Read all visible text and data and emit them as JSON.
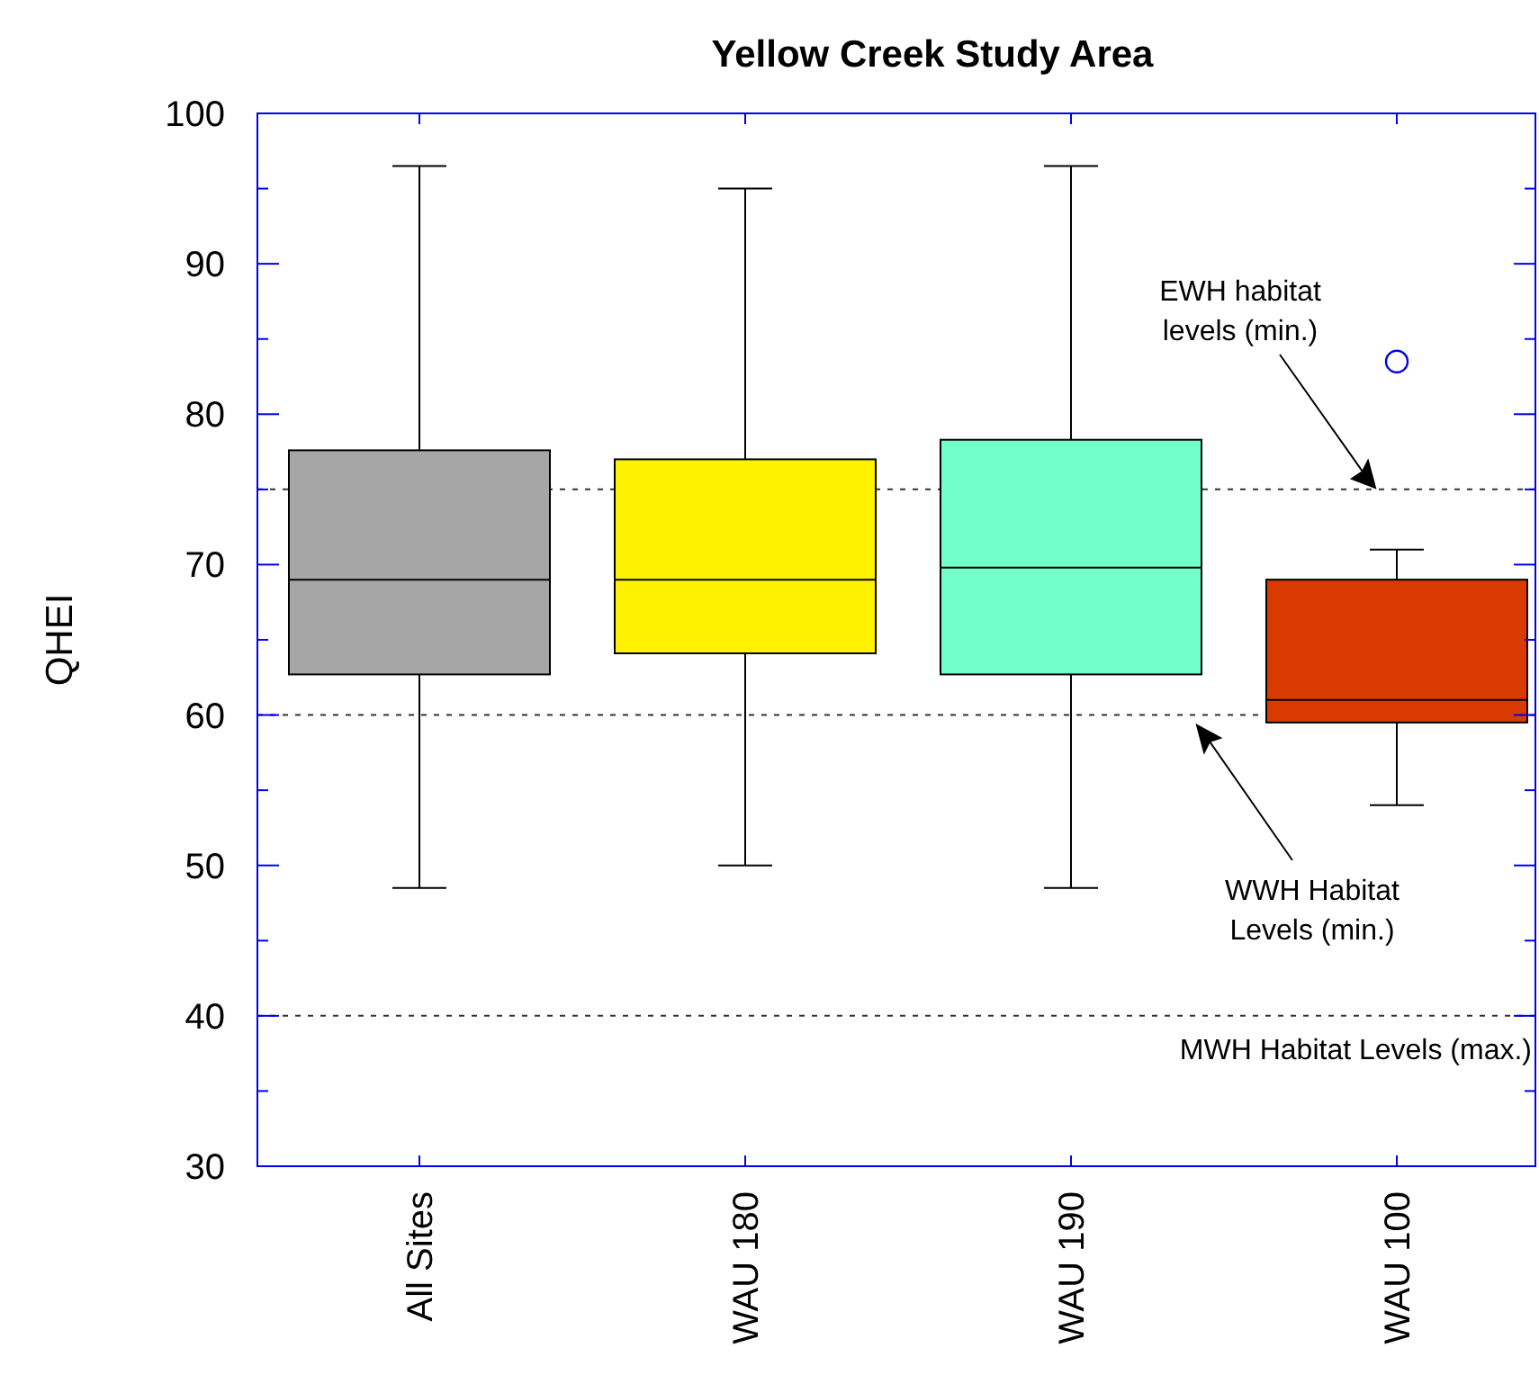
{
  "chart_data": {
    "type": "box",
    "title": "Yellow Creek Study Area",
    "ylabel": "QHEI",
    "categories": [
      "All Sites",
      "WAU 180",
      "WAU 190",
      "WAU 100"
    ],
    "colors": [
      "#a6a6a6",
      "#fff200",
      "#73ffc8",
      "#d93a00"
    ],
    "boxes": [
      {
        "low": 48.5,
        "q1": 62.7,
        "median": 69.0,
        "q3": 77.6,
        "high": 96.5
      },
      {
        "low": 50.0,
        "q1": 64.1,
        "median": 69.0,
        "q3": 77.0,
        "high": 95.0
      },
      {
        "low": 48.5,
        "q1": 62.7,
        "median": 69.8,
        "q3": 78.3,
        "high": 96.5
      },
      {
        "low": 54.0,
        "q1": 59.5,
        "median": 61.0,
        "q3": 69.0,
        "high": 71.0,
        "outliers": [
          83.5
        ]
      }
    ],
    "ylim": [
      30,
      100
    ],
    "yticks": [
      30,
      {
        "value": 35,
        "label": null
      },
      40,
      {
        "value": 45,
        "label": null
      },
      50,
      {
        "value": 55,
        "label": null
      },
      60,
      {
        "value": 65,
        "label": null
      },
      70,
      {
        "value": 75,
        "label": null
      },
      80,
      {
        "value": 85,
        "label": null
      },
      90,
      {
        "value": 95,
        "label": null
      },
      100
    ],
    "grid": false,
    "annotations": [
      "EWH habitat levels (min.)",
      "WWH Habitat Levels (min.)"
    ],
    "ref_lines": [
      {
        "axis": "y",
        "value": 75,
        "line_style": "dotted"
      },
      {
        "axis": "y",
        "value": 60,
        "line_style": "dotted"
      },
      {
        "axis": "y",
        "value": 40,
        "label": "MWH Habitat Levels (max.)",
        "line_style": "dotted"
      }
    ]
  }
}
